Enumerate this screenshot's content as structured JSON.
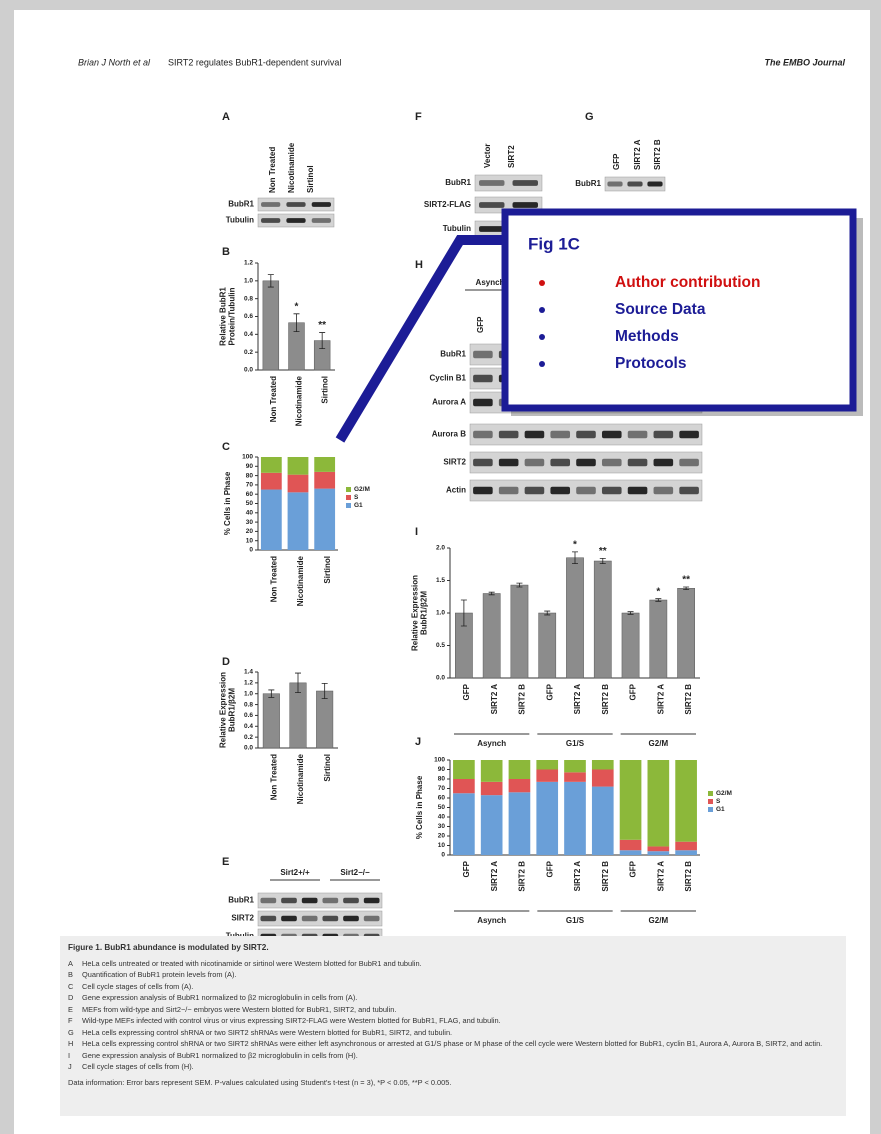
{
  "header": {
    "authors": "Brian J North et al",
    "running_title": "SIRT2 regulates BubR1-dependent survival",
    "journal": "The EMBO Journal"
  },
  "blots": [
    {
      "panel": "A",
      "lanes": [
        "Non Treated",
        "Nicotinamide",
        "Sirtinol"
      ],
      "rows": [
        "BubR1",
        "Tubulin"
      ]
    },
    {
      "panel": "E",
      "headers": [
        "Sirt2+/+",
        "Sirt2−/−"
      ],
      "rows": [
        "BubR1",
        "SIRT2",
        "Tubulin"
      ]
    },
    {
      "panel": "F",
      "lanes": [
        "Vector",
        "SIRT2"
      ],
      "rows": [
        "BubR1",
        "SIRT2-FLAG",
        "Tubulin"
      ]
    },
    {
      "panel": "G",
      "lanes": [
        "GFP",
        "SIRT2 A",
        "SIRT2 B"
      ],
      "rows": [
        "BubR1"
      ]
    },
    {
      "panel": "H",
      "headers": [
        "Asynch"
      ],
      "lanes": [
        "GFP"
      ],
      "rows": [
        "BubR1",
        "Cyclin B1",
        "Aurora A",
        "Aurora B",
        "SIRT2",
        "Actin"
      ]
    }
  ],
  "chart_data": [
    {
      "type": "bar",
      "panel": "B",
      "ylabel": [
        "Relative BubR1",
        "Protein/Tubulin"
      ],
      "categories": [
        "Non Treated",
        "Nicotinamide",
        "Sirtinol"
      ],
      "values": [
        1.0,
        0.53,
        0.33
      ],
      "errors": [
        0.07,
        0.1,
        0.09
      ],
      "value_annotations": [
        null,
        "*",
        "**"
      ],
      "color": "#8c8c8c",
      "ylim": [
        0,
        1.2
      ],
      "yticks": [
        {
          "value": 0,
          "label": "0.0"
        },
        0.2,
        0.4,
        0.6,
        0.8,
        {
          "value": 1,
          "label": "1.0"
        },
        1.2
      ]
    },
    {
      "type": "stacked_bar",
      "panel": "C",
      "ylabel": [
        "% Cells in Phase"
      ],
      "categories": [
        "Non Treated",
        "Nicotinamide",
        "Sirtinol"
      ],
      "series": [
        {
          "name": "G1",
          "color": "#6a9fd8",
          "values": [
            65,
            62,
            66
          ]
        },
        {
          "name": "S",
          "color": "#e05555",
          "values": [
            18,
            19,
            18
          ]
        },
        {
          "name": "G2/M",
          "color": "#8cb83a",
          "values": [
            17,
            19,
            16
          ]
        }
      ],
      "ylim": [
        0,
        100
      ],
      "yticks": [
        0,
        10,
        20,
        30,
        40,
        50,
        60,
        70,
        80,
        90,
        100
      ]
    },
    {
      "type": "bar",
      "panel": "D",
      "ylabel": [
        "Relative Expression",
        "BubR1/β2M"
      ],
      "categories": [
        "Non Treated",
        "Nicotinamide",
        "Sirtinol"
      ],
      "values": [
        1.0,
        1.2,
        1.05
      ],
      "errors": [
        0.07,
        0.18,
        0.14
      ],
      "color": "#8c8c8c",
      "ylim": [
        0,
        1.4
      ],
      "yticks": [
        {
          "value": 0,
          "label": "0.0"
        },
        0.2,
        0.4,
        0.6,
        0.8,
        {
          "value": 1,
          "label": "1.0"
        },
        1.2,
        1.4
      ]
    },
    {
      "type": "bar",
      "panel": "I",
      "ylabel": [
        "Relative Expression",
        "BubR1/β2M"
      ],
      "categories": [
        "GFP",
        "SIRT2 A",
        "SIRT2 B",
        "GFP",
        "SIRT2 A",
        "SIRT2 B",
        "GFP",
        "SIRT2 A",
        "SIRT2 B"
      ],
      "groups": [
        "Asynch",
        "G1/S",
        "G2/M"
      ],
      "values": [
        1.0,
        1.3,
        1.43,
        1.0,
        1.85,
        1.8,
        1.0,
        1.2,
        1.38
      ],
      "errors": [
        0.2,
        0.02,
        0.03,
        0.03,
        0.09,
        0.04,
        0.02,
        0.02,
        0.02
      ],
      "value_annotations": [
        null,
        null,
        null,
        null,
        "*",
        "**",
        null,
        "*",
        "**"
      ],
      "color": "#8c8c8c",
      "ylim": [
        0,
        2
      ],
      "yticks": [
        {
          "value": 0,
          "label": "0.0"
        },
        0.5,
        {
          "value": 1,
          "label": "1.0"
        },
        1.5,
        {
          "value": 2,
          "label": "2.0"
        }
      ]
    },
    {
      "type": "stacked_bar",
      "panel": "J",
      "ylabel": [
        "% Cells in Phase"
      ],
      "categories": [
        "GFP",
        "SIRT2 A",
        "SIRT2 B",
        "GFP",
        "SIRT2 A",
        "SIRT2 B",
        "GFP",
        "SIRT2 A",
        "SIRT2 B"
      ],
      "groups": [
        "Asynch",
        "G1/S",
        "G2/M"
      ],
      "series": [
        {
          "name": "G1",
          "color": "#6a9fd8",
          "values": [
            65,
            63,
            66,
            77,
            77,
            72,
            5,
            4,
            5
          ]
        },
        {
          "name": "S",
          "color": "#e05555",
          "values": [
            15,
            14,
            14,
            13,
            10,
            18,
            11,
            5,
            9
          ]
        },
        {
          "name": "G2/M",
          "color": "#8cb83a",
          "values": [
            20,
            23,
            20,
            10,
            13,
            10,
            84,
            91,
            86
          ]
        }
      ],
      "ylim": [
        0,
        100
      ],
      "yticks": [
        0,
        10,
        20,
        30,
        40,
        50,
        60,
        70,
        80,
        90,
        100
      ]
    }
  ],
  "caption": {
    "title": "Figure 1.  BubR1 abundance is modulated by SIRT2.",
    "items": [
      {
        "letter": "A",
        "text": "HeLa cells untreated or treated with nicotinamide or sirtinol were Western blotted for BubR1 and tubulin."
      },
      {
        "letter": "B",
        "text": "Quantification of BubR1 protein levels from (A)."
      },
      {
        "letter": "C",
        "text": "Cell cycle stages of cells from (A)."
      },
      {
        "letter": "D",
        "text": "Gene expression analysis of BubR1 normalized to β2 microglobulin in cells from (A)."
      },
      {
        "letter": "E",
        "text": "MEFs from wild-type and Sirt2−/− embryos were Western blotted for BubR1, SIRT2, and tubulin."
      },
      {
        "letter": "F",
        "text": "Wild-type MEFs infected with control virus or virus expressing SIRT2-FLAG were Western blotted for BubR1, FLAG, and tubulin."
      },
      {
        "letter": "G",
        "text": "HeLa cells expressing control shRNA or two SIRT2 shRNAs were Western blotted for BubR1, SIRT2, and tubulin."
      },
      {
        "letter": "H",
        "text": "HeLa cells expressing control shRNA or two SIRT2 shRNAs were either left asynchronous or arrested at G1/S phase or M phase of the cell cycle were Western blotted for BubR1, cyclin B1, Aurora A, Aurora B, SIRT2, and actin."
      },
      {
        "letter": "I",
        "text": "Gene expression analysis of BubR1 normalized to β2 microglobulin in cells from (H)."
      },
      {
        "letter": "J",
        "text": "Cell cycle stages of cells from (H)."
      }
    ],
    "note": "Data information: Error bars represent SEM. P-values calculated using Student's t-test (n = 3), *P < 0.05, **P < 0.005."
  },
  "callout": {
    "title": "Fig 1C",
    "items": [
      "Author contribution",
      "Source Data",
      "Methods",
      "Protocols"
    ]
  }
}
